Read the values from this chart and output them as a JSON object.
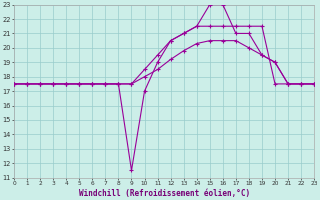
{
  "xlabel": "Windchill (Refroidissement éolien,°C)",
  "bg_color": "#cceee8",
  "grid_color": "#99cccc",
  "line_color": "#990099",
  "xmin": 0,
  "xmax": 23,
  "ymin": 11,
  "ymax": 23,
  "line1_x": [
    0,
    1,
    2,
    3,
    4,
    5,
    6,
    7,
    8,
    9,
    10,
    11,
    12,
    13,
    14,
    15,
    16,
    17,
    18,
    19,
    20,
    21,
    22,
    23
  ],
  "line1_y": [
    17.5,
    17.5,
    17.5,
    17.5,
    17.5,
    17.5,
    17.5,
    17.5,
    17.5,
    17.5,
    18.0,
    18.5,
    19.2,
    19.8,
    20.3,
    20.5,
    20.5,
    20.5,
    20.0,
    19.5,
    19.0,
    17.5,
    17.5,
    17.5
  ],
  "line2_x": [
    0,
    1,
    2,
    3,
    4,
    5,
    6,
    7,
    8,
    9,
    10,
    11,
    12,
    13,
    14,
    15,
    16,
    17,
    18,
    19,
    20,
    21,
    22,
    23
  ],
  "line2_y": [
    17.5,
    17.5,
    17.5,
    17.5,
    17.5,
    17.5,
    17.5,
    17.5,
    17.5,
    17.5,
    18.5,
    19.5,
    20.5,
    21.0,
    21.5,
    21.5,
    21.5,
    21.5,
    21.5,
    21.5,
    17.5,
    17.5,
    17.5,
    17.5
  ],
  "line3_x": [
    0,
    1,
    2,
    3,
    4,
    5,
    6,
    7,
    8,
    9,
    10,
    11,
    12,
    13,
    14,
    15,
    16,
    17,
    18,
    19,
    20,
    21,
    22,
    23
  ],
  "line3_y": [
    17.5,
    17.5,
    17.5,
    17.5,
    17.5,
    17.5,
    17.5,
    17.5,
    17.5,
    11.5,
    17.0,
    19.0,
    20.5,
    21.0,
    21.5,
    23.0,
    23.0,
    21.0,
    21.0,
    19.5,
    19.0,
    17.5,
    17.5,
    17.5
  ]
}
